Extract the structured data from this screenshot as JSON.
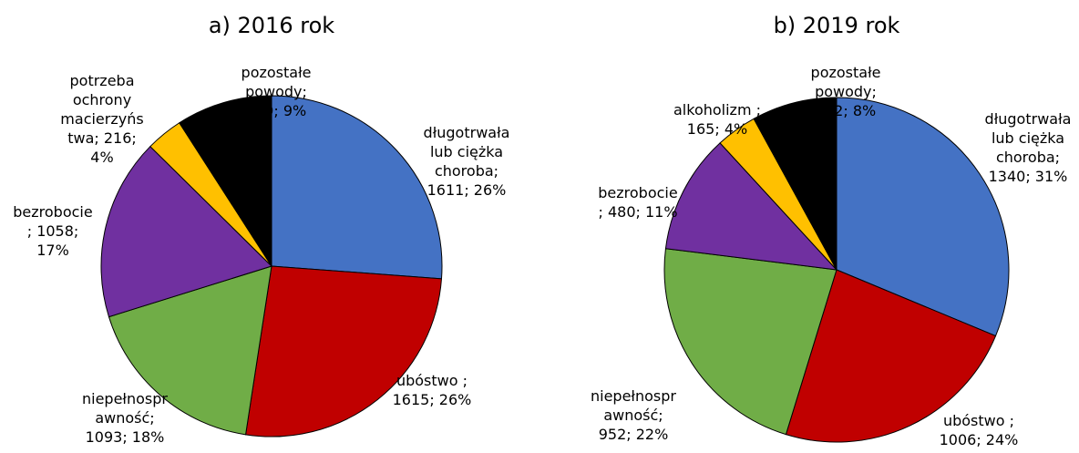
{
  "chart_data": [
    {
      "type": "pie",
      "title": "a) 2016 rok",
      "categories": [
        "długotrwała lub ciężka choroba",
        "ubóstwo ",
        "niepełnosprawność",
        "bezrobocie ",
        "potrzeba ochrony macierzyństwa",
        "pozostałe powody"
      ],
      "values": [
        1611,
        1615,
        1093,
        1058,
        216,
        560
      ],
      "value_labels": [
        "1611; 26%",
        "1615; 26%",
        "1093; 18%",
        "1058; 17%",
        "216; 4%",
        "560; 9%"
      ],
      "colors": [
        "#4472c4",
        "#c00000",
        "#70ad47",
        "#7030a0",
        "#ffc000",
        "#000000"
      ]
    },
    {
      "type": "pie",
      "title": "b) 2019 rok",
      "categories": [
        "długotrwała lub ciężka choroba",
        "ubóstwo ",
        "niepełnosprawność",
        "bezrobocie ",
        "alkoholizm ",
        "pozostałe powody"
      ],
      "values": [
        1340,
        1006,
        952,
        480,
        165,
        342
      ],
      "value_labels": [
        "1340; 31%",
        "1006; 24%",
        "952; 22%",
        "480; 11%",
        "165; 4%",
        "342; 8%"
      ],
      "colors": [
        "#4472c4",
        "#c00000",
        "#70ad47",
        "#7030a0",
        "#ffc000",
        "#000000"
      ]
    }
  ]
}
